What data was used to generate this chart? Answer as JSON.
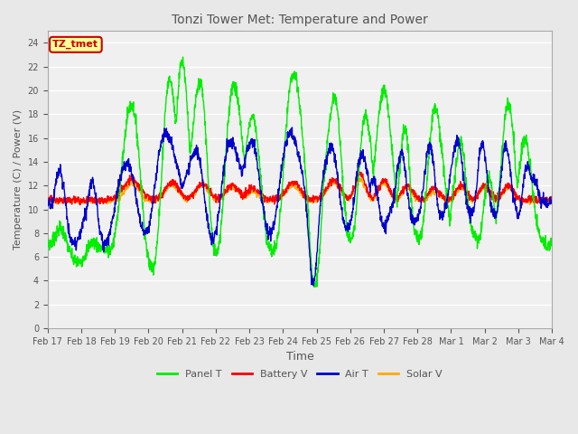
{
  "title": "Tonzi Tower Met: Temperature and Power",
  "xlabel": "Time",
  "ylabel": "Temperature (C) / Power (V)",
  "ylim": [
    0,
    25
  ],
  "yticks": [
    0,
    2,
    4,
    6,
    8,
    10,
    12,
    14,
    16,
    18,
    20,
    22,
    24
  ],
  "bg_color": "#e8e8e8",
  "plot_bg_color": "#f0f0f0",
  "grid_color": "#ffffff",
  "series_colors": {
    "panel_t": "#00ee00",
    "battery_v": "#ff0000",
    "air_t": "#0000cc",
    "solar_v": "#ffaa00"
  },
  "series_labels": [
    "Panel T",
    "Battery V",
    "Air T",
    "Solar V"
  ],
  "timezone_label": "TZ_tmet",
  "tz_bg_color": "#ffff99",
  "tz_border_color": "#cc0000",
  "tz_text_color": "#cc0000",
  "xtick_labels": [
    "Feb 17",
    "Feb 18",
    "Feb 19",
    "Feb 20",
    "Feb 21",
    "Feb 22",
    "Feb 23",
    "Feb 24",
    "Feb 25",
    "Feb 26",
    "Feb 27",
    "Feb 28",
    "Mar 1",
    "Mar 2",
    "Mar 3",
    "Mar 4"
  ]
}
